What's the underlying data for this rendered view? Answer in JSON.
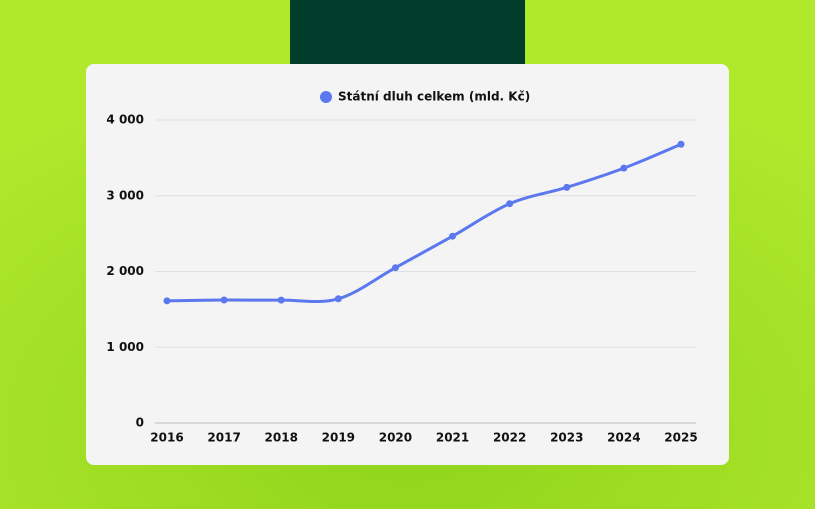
{
  "chart_data": {
    "type": "line",
    "categories": [
      "2016",
      "2017",
      "2018",
      "2019",
      "2020",
      "2021",
      "2022",
      "2023",
      "2024",
      "2025"
    ],
    "series": [
      {
        "name": "Státní dluh celkem (mld. Kč)",
        "color": "#5b78ef",
        "values": [
          1613,
          1624,
          1622,
          1640,
          2050,
          2466,
          2895,
          3111,
          3365,
          3680
        ]
      }
    ],
    "ylim": [
      0,
      4000
    ],
    "yticks": [
      0,
      {
        "value": 1000,
        "label": "1 000"
      },
      {
        "value": 2000,
        "label": "2 000"
      },
      {
        "value": 3000,
        "label": "3 000"
      },
      {
        "value": 4000,
        "label": "4 000"
      }
    ],
    "grid": true,
    "smooth": true
  }
}
